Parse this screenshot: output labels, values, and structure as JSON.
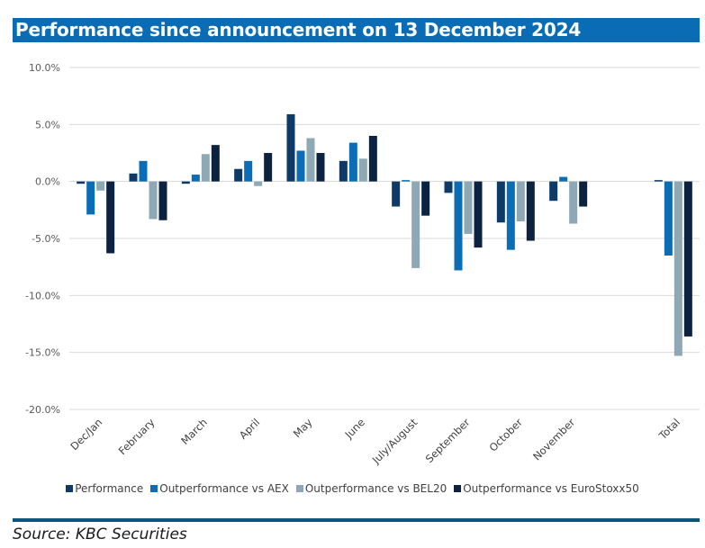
{
  "header": {
    "title": "Performance since announcement on 13 December 2024"
  },
  "footer": {
    "source": "Source: KBC Securities"
  },
  "chart_data": {
    "type": "bar",
    "title": "Performance since announcement on 13 December 2024",
    "xlabel": "",
    "ylabel": "",
    "ylim": [
      -20,
      10
    ],
    "y_ticks": [
      10,
      5,
      0,
      -5,
      -10,
      -15,
      -20
    ],
    "y_tick_labels": [
      "10.0%",
      "5.0%",
      "0.0%",
      "-5.0%",
      "-10.0%",
      "-15.0%",
      "-20.0%"
    ],
    "grid": true,
    "legend_position": "bottom",
    "categories": [
      "Dec/Jan",
      "February",
      "March",
      "April",
      "May",
      "June",
      "July/August",
      "September",
      "October",
      "November",
      "",
      "Total"
    ],
    "series": [
      {
        "name": "Performance",
        "color": "#0d3a66",
        "values": [
          -0.2,
          0.7,
          -0.2,
          1.1,
          5.9,
          1.8,
          -2.2,
          -1.0,
          -3.6,
          -1.7,
          null,
          0.1
        ]
      },
      {
        "name": "Outperformance vs AEX",
        "color": "#0b6db5",
        "values": [
          -2.9,
          1.8,
          0.6,
          1.8,
          2.7,
          3.4,
          0.0,
          -7.8,
          -6.0,
          0.4,
          null,
          -6.5
        ]
      },
      {
        "name": "Outperformance vs BEL20",
        "color": "#8ea9b5",
        "values": [
          -0.8,
          -3.3,
          2.4,
          -0.4,
          3.8,
          2.0,
          -7.6,
          -4.6,
          -3.5,
          -3.7,
          null,
          -15.3
        ]
      },
      {
        "name": "Outperformance vs EuroStoxx50",
        "color": "#0b2340",
        "values": [
          -6.3,
          -3.4,
          3.2,
          2.5,
          2.5,
          4.0,
          -3.0,
          -5.8,
          -5.2,
          -2.2,
          null,
          -13.6
        ]
      }
    ]
  }
}
